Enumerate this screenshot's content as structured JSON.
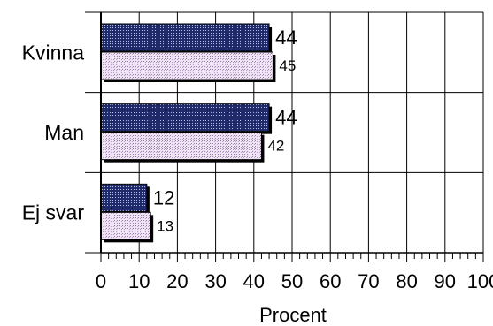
{
  "chart_data": {
    "type": "bar",
    "orientation": "horizontal",
    "categories": [
      "Kvinna",
      "Man",
      "Ej svar"
    ],
    "series": [
      {
        "values": [
          44,
          44,
          12
        ],
        "color": "#1f2a6b"
      },
      {
        "values": [
          45,
          42,
          13
        ],
        "color": "#e9dcef"
      }
    ],
    "xlabel": "Procent",
    "xlim": [
      0,
      100
    ],
    "x_ticks": [
      "0",
      "10",
      "20",
      "30",
      "40",
      "50",
      "60",
      "70",
      "80",
      "90",
      "100"
    ],
    "grid": true,
    "data_labels": true
  }
}
